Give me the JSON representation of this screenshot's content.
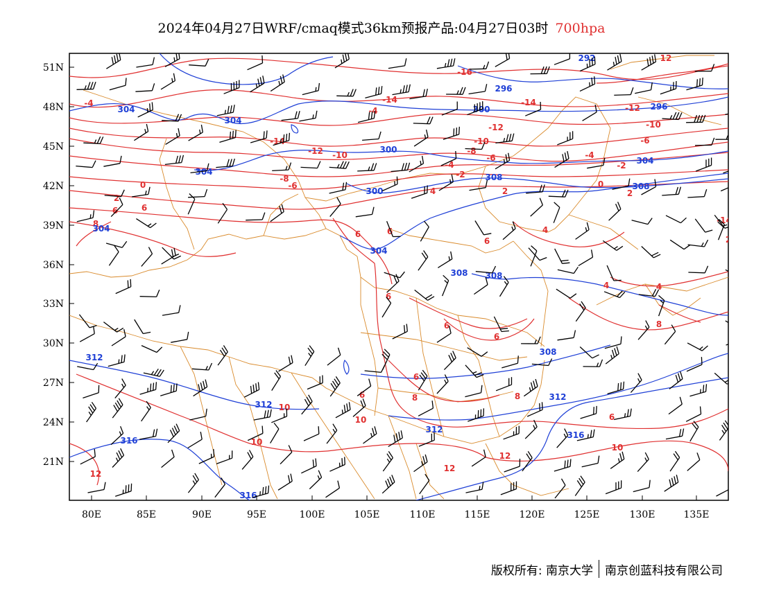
{
  "title": {
    "main": "2024年04月27日WRF/cmaq模式36km预报产品:04月27日03时",
    "level": "700hpa"
  },
  "footer": {
    "copyright": "版权所有: 南京大学",
    "company": "南京创蓝科技有限公司"
  },
  "axes": {
    "lat_ticks": [
      "51N",
      "48N",
      "45N",
      "42N",
      "39N",
      "36N",
      "33N",
      "30N",
      "27N",
      "24N",
      "21N"
    ],
    "lon_ticks": [
      "80E",
      "85E",
      "90E",
      "95E",
      "100E",
      "105E",
      "110E",
      "115E",
      "120E",
      "125E",
      "130E",
      "135E"
    ]
  },
  "colors": {
    "temperature": "#e03030",
    "height": "#1e3fd6",
    "border": "#d98a2b",
    "barb": "#000000",
    "level": "#e03030"
  },
  "temperature_labels": [
    "-16",
    "-14",
    "-14",
    "-14",
    "-12",
    "-12",
    "-12",
    "-10",
    "-10",
    "-10",
    "-8",
    "-8",
    "-6",
    "-6",
    "-6",
    "-4",
    "-4",
    "-4",
    "-2",
    "-2",
    "0",
    "0",
    "2",
    "2",
    "2",
    "4",
    "4",
    "4",
    "4",
    "6",
    "6",
    "6",
    "6",
    "6",
    "6",
    "6",
    "6",
    "6",
    "6",
    "8",
    "8",
    "8",
    "8",
    "10",
    "10",
    "10",
    "10",
    "12",
    "12",
    "12",
    "12",
    "-4",
    "-14",
    "2",
    "6"
  ],
  "height_labels": [
    "292",
    "296",
    "296",
    "300",
    "300",
    "300",
    "304",
    "304",
    "304",
    "304",
    "304",
    "304",
    "308",
    "308",
    "308",
    "308",
    "308",
    "312",
    "312",
    "312",
    "312",
    "316",
    "316",
    "316"
  ]
}
